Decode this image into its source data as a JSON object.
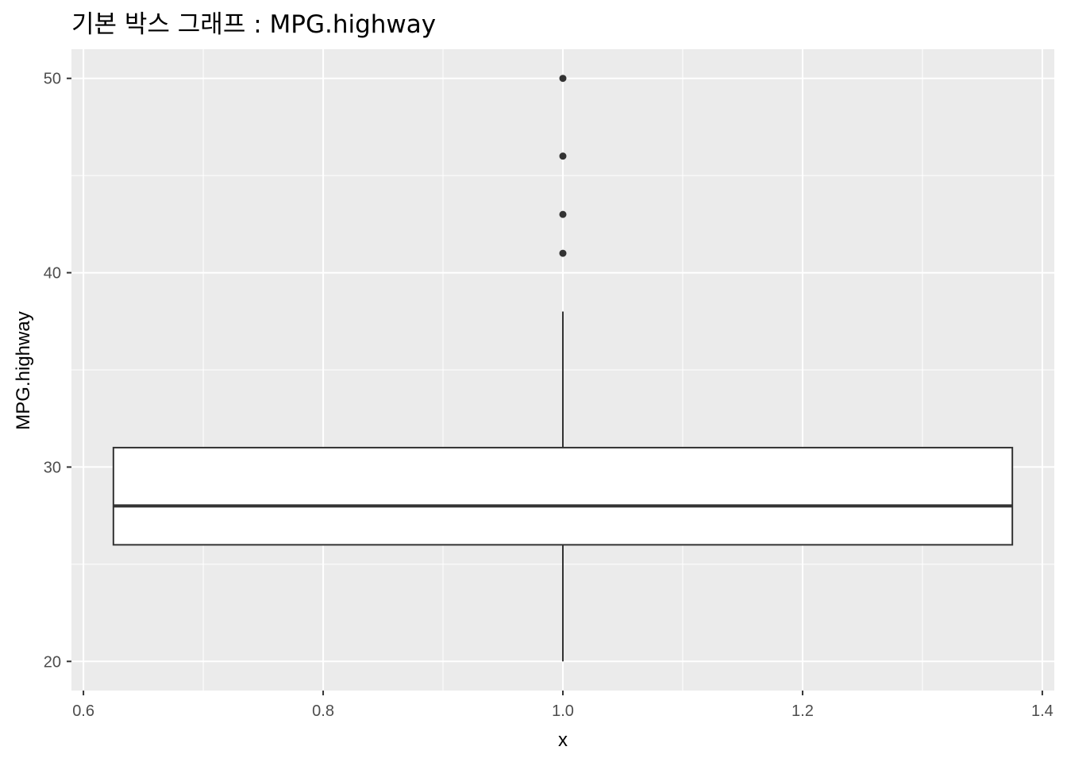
{
  "chart_data": {
    "type": "boxplot",
    "title": "기본 박스 그래프 : MPG.highway",
    "xlabel": "x",
    "ylabel": "MPG.highway",
    "xlim": [
      0.59,
      1.41
    ],
    "ylim": [
      18.5,
      51.5
    ],
    "x_ticks": [
      0.6,
      0.8,
      1.0,
      1.2,
      1.4
    ],
    "x_tick_labels": [
      "0.6",
      "0.8",
      "1.0",
      "1.2",
      "1.4"
    ],
    "y_ticks": [
      20,
      30,
      40,
      50
    ],
    "y_tick_labels": [
      "20",
      "30",
      "40",
      "50"
    ],
    "grid": true,
    "box": {
      "x": 1.0,
      "x_range": [
        0.625,
        1.375
      ],
      "lower_whisker": 20,
      "q1": 26,
      "median": 28,
      "q3": 31,
      "upper_whisker": 38
    },
    "outliers": [
      41,
      43,
      46,
      50
    ],
    "colors": {
      "panel_bg": "#ebebeb",
      "grid": "#ffffff",
      "box_fill": "#ffffff",
      "box_line": "#333333",
      "point": "#333333"
    }
  }
}
